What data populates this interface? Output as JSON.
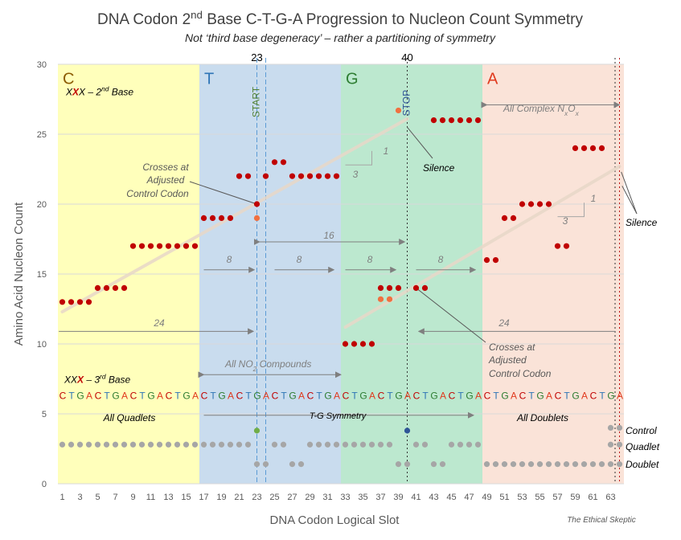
{
  "chart_data": {
    "type": "scatter",
    "title_main": "DNA Codon 2",
    "title_sup": "nd",
    "title_rest": " Base C-T-G-A Progression to Nucleon Count Symmetry",
    "subtitle": "Not ‘third base degeneracy’ – rather a partitioning of symmetry",
    "xlabel": "DNA Codon Logical Slot",
    "ylabel": "Amino Acid Nucleon Count",
    "xlim": [
      0.5,
      64.5
    ],
    "ylim": [
      0,
      30
    ],
    "xticks": [
      1,
      3,
      5,
      7,
      9,
      11,
      13,
      15,
      17,
      19,
      21,
      23,
      25,
      27,
      29,
      31,
      33,
      35,
      37,
      39,
      41,
      43,
      45,
      47,
      49,
      51,
      53,
      55,
      57,
      59,
      61,
      63
    ],
    "yticks": [
      0,
      5,
      10,
      15,
      20,
      25,
      30
    ],
    "regions": [
      {
        "letter": "C",
        "x0": 0.5,
        "x1": 16.5,
        "fill": "#FFFFBB",
        "letter_color": "#8B5A00"
      },
      {
        "letter": "T",
        "x0": 16.5,
        "x1": 32.5,
        "fill": "#C9DCEE",
        "letter_color": "#2E75B6"
      },
      {
        "letter": "G",
        "x0": 32.5,
        "x1": 48.5,
        "fill": "#BCE8CF",
        "letter_color": "#2E7D32"
      },
      {
        "letter": "A",
        "x0": 48.5,
        "x1": 64.5,
        "fill": "#FAE3D8",
        "letter_color": "#E03A1E"
      }
    ],
    "series": [
      {
        "name": "",
        "color": "#C00000",
        "points": [
          [
            1,
            13
          ],
          [
            2,
            13
          ],
          [
            3,
            13
          ],
          [
            4,
            13
          ],
          [
            5,
            14
          ],
          [
            6,
            14
          ],
          [
            7,
            14
          ],
          [
            8,
            14
          ],
          [
            9,
            17
          ],
          [
            10,
            17
          ],
          [
            11,
            17
          ],
          [
            12,
            17
          ],
          [
            13,
            17
          ],
          [
            14,
            17
          ],
          [
            15,
            17
          ],
          [
            16,
            17
          ],
          [
            17,
            19
          ],
          [
            18,
            19
          ],
          [
            19,
            19
          ],
          [
            20,
            19
          ],
          [
            21,
            22
          ],
          [
            22,
            22
          ],
          [
            23,
            20
          ],
          [
            24,
            22
          ],
          [
            25,
            23
          ],
          [
            26,
            23
          ],
          [
            27,
            22
          ],
          [
            28,
            22
          ],
          [
            29,
            22
          ],
          [
            30,
            22
          ],
          [
            31,
            22
          ],
          [
            32,
            22
          ],
          [
            33,
            10
          ],
          [
            34,
            10
          ],
          [
            35,
            10
          ],
          [
            36,
            10
          ],
          [
            37,
            14
          ],
          [
            38,
            14
          ],
          [
            39,
            14
          ],
          [
            41,
            14
          ],
          [
            42,
            14
          ],
          [
            43,
            26
          ],
          [
            44,
            26
          ],
          [
            45,
            26
          ],
          [
            46,
            26
          ],
          [
            47,
            26
          ],
          [
            48,
            26
          ],
          [
            49,
            16
          ],
          [
            50,
            16
          ],
          [
            51,
            19
          ],
          [
            52,
            19
          ],
          [
            53,
            20
          ],
          [
            54,
            20
          ],
          [
            55,
            20
          ],
          [
            56,
            20
          ],
          [
            57,
            17
          ],
          [
            58,
            17
          ],
          [
            59,
            24
          ],
          [
            60,
            24
          ],
          [
            61,
            24
          ],
          [
            62,
            24
          ]
        ]
      },
      {
        "name": "",
        "color": "#F07040",
        "points": [
          [
            23,
            19
          ],
          [
            37,
            13.2
          ],
          [
            38,
            13.2
          ],
          [
            39,
            26.7
          ]
        ]
      },
      {
        "name": "",
        "color": "#A6A6A6",
        "points": [
          [
            1,
            2.8
          ],
          [
            2,
            2.8
          ],
          [
            3,
            2.8
          ],
          [
            4,
            2.8
          ],
          [
            5,
            2.8
          ],
          [
            6,
            2.8
          ],
          [
            7,
            2.8
          ],
          [
            8,
            2.8
          ],
          [
            9,
            2.8
          ],
          [
            10,
            2.8
          ],
          [
            11,
            2.8
          ],
          [
            12,
            2.8
          ],
          [
            13,
            2.8
          ],
          [
            14,
            2.8
          ],
          [
            15,
            2.8
          ],
          [
            16,
            2.8
          ],
          [
            17,
            2.8
          ],
          [
            18,
            2.8
          ],
          [
            19,
            2.8
          ],
          [
            20,
            2.8
          ],
          [
            21,
            2.8
          ],
          [
            22,
            2.8
          ],
          [
            23,
            1.4
          ],
          [
            24,
            1.4
          ],
          [
            25,
            2.8
          ],
          [
            26,
            2.8
          ],
          [
            27,
            1.4
          ],
          [
            28,
            1.4
          ],
          [
            29,
            2.8
          ],
          [
            30,
            2.8
          ],
          [
            31,
            2.8
          ],
          [
            32,
            2.8
          ],
          [
            33,
            2.8
          ],
          [
            34,
            2.8
          ],
          [
            35,
            2.8
          ],
          [
            36,
            2.8
          ],
          [
            37,
            2.8
          ],
          [
            38,
            2.8
          ],
          [
            39,
            1.4
          ],
          [
            40,
            1.4
          ],
          [
            41,
            2.8
          ],
          [
            42,
            2.8
          ],
          [
            43,
            1.4
          ],
          [
            44,
            1.4
          ],
          [
            45,
            2.8
          ],
          [
            46,
            2.8
          ],
          [
            47,
            2.8
          ],
          [
            48,
            2.8
          ],
          [
            49,
            1.4
          ],
          [
            50,
            1.4
          ],
          [
            51,
            1.4
          ],
          [
            52,
            1.4
          ],
          [
            53,
            1.4
          ],
          [
            54,
            1.4
          ],
          [
            55,
            1.4
          ],
          [
            56,
            1.4
          ],
          [
            57,
            1.4
          ],
          [
            58,
            1.4
          ],
          [
            59,
            1.4
          ],
          [
            60,
            1.4
          ],
          [
            61,
            1.4
          ],
          [
            62,
            1.4
          ],
          [
            63,
            1.4
          ],
          [
            64,
            1.4
          ],
          [
            63,
            4
          ],
          [
            64,
            4
          ],
          [
            63,
            2.8
          ],
          [
            64,
            2.8
          ]
        ]
      },
      {
        "name": "",
        "color": "#70AD47",
        "points": [
          [
            23,
            3.8
          ]
        ]
      },
      {
        "name": "",
        "color": "#2F5597",
        "points": [
          [
            40,
            3.8
          ]
        ]
      }
    ],
    "trend_lines": [
      {
        "x0": 1,
        "y0": 12.3,
        "x1": 40,
        "y1": 26.1
      },
      {
        "x0": 33,
        "y0": 11.2,
        "x1": 64,
        "y1": 22.7
      }
    ],
    "vlines": [
      {
        "x": 23,
        "label": "23",
        "style": "dash",
        "color": "#5B9BD5"
      },
      {
        "x": 24,
        "label": "",
        "style": "dash",
        "color": "#5B9BD5"
      },
      {
        "x": 40,
        "label": "40",
        "style": "dot",
        "color": "#333333"
      },
      {
        "x": 63.5,
        "label": "",
        "style": "dot",
        "color": "#333333"
      },
      {
        "x": 64,
        "label": "",
        "style": "dot",
        "color": "#C00000"
      }
    ],
    "codon_strip_y": 6.3,
    "codon_strip_letters": [
      "C",
      "T",
      "G",
      "A"
    ],
    "codon_strip_colors": {
      "C": "#C00000",
      "T": "#2E75B6",
      "G": "#2E7D32",
      "A": "#E03A1E"
    },
    "labels": {
      "start": "START",
      "stop": "STOP",
      "second_base_a": "X",
      "second_base_b": "X",
      "second_base_c": "X – 2",
      "second_base_sup": "nd",
      "second_base_end": " Base",
      "third_base_a": "XX",
      "third_base_b": "X",
      "third_base_c": " – 3",
      "third_base_sup": "rd",
      "third_base_end": " Base",
      "crosses_a1": "Crosses at",
      "crosses_a2": "Adjusted",
      "crosses_a3": "Control Codon",
      "crosses_b1": "Crosses at",
      "crosses_b2": "Adjusted",
      "crosses_b3": "Control Codon",
      "silence_1": "Silence",
      "silence_2": "Silence",
      "all_complex": "All Complex N",
      "all_complex_x": "x",
      "all_complex_o": "O",
      "all_complex_ox": "x",
      "all_no2_a": "All NO",
      "all_no2_sub": "2",
      "all_no2_b": " Compounds",
      "span16": "16",
      "span24a": "24",
      "span24b": "24",
      "span8a": "8",
      "span8b": "8",
      "span8c": "8",
      "span8d": "8",
      "tri1_a": "1",
      "tri1_b": "3",
      "tri2_a": "1",
      "tri2_b": "3",
      "all_quadlets": "All Quadlets",
      "tg_symmetry": "T-G Symmetry",
      "all_doublets": "All Doublets",
      "control": "Control",
      "quadlet": "Quadlet",
      "doublet": "Doublet",
      "watermark": "The Ethical Skeptic"
    }
  }
}
